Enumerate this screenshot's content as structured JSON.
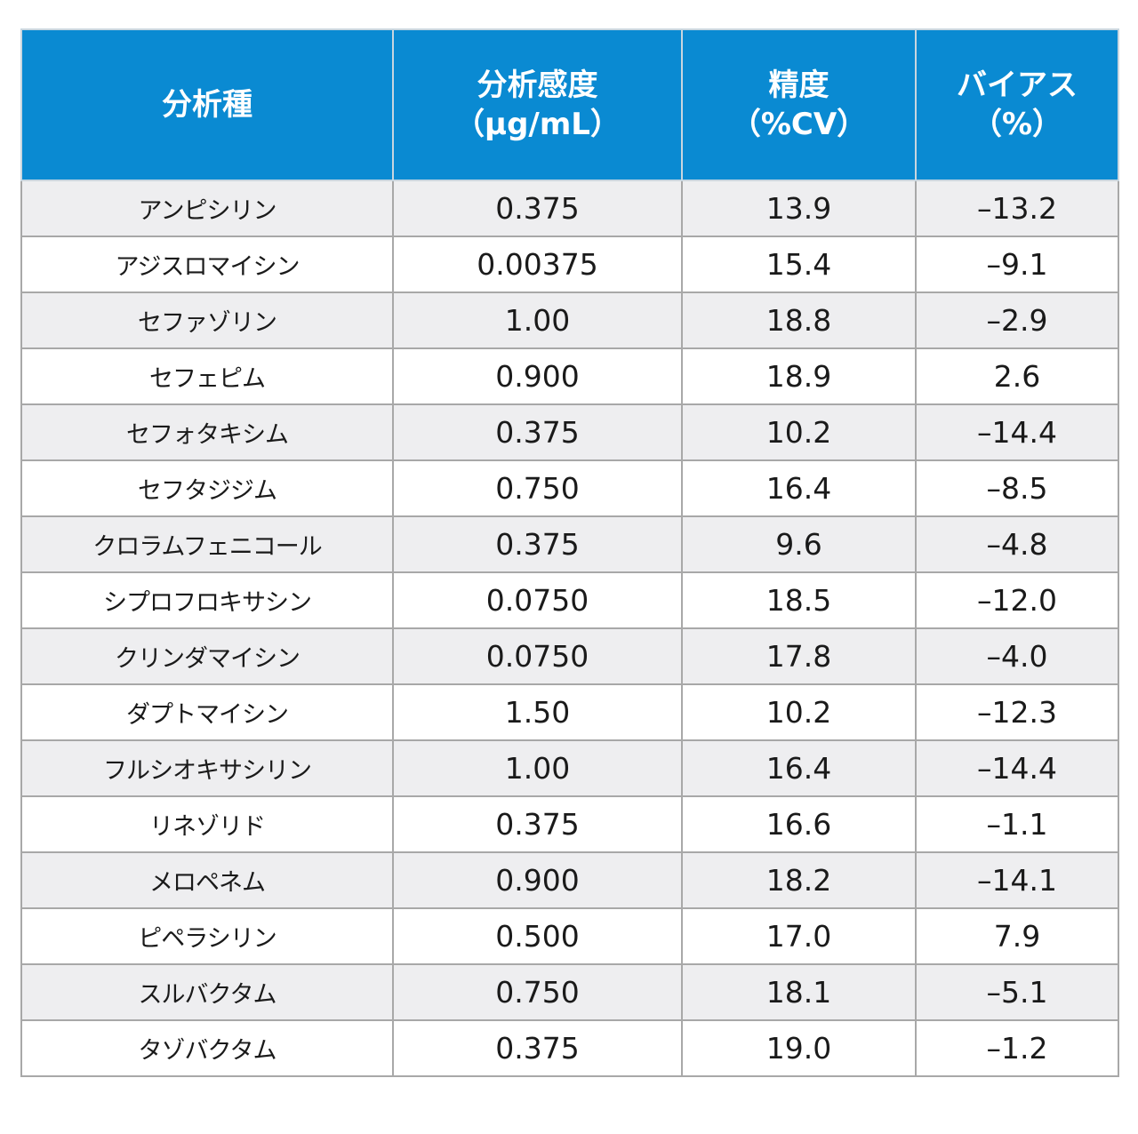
{
  "headers": [
    {
      "line1": "分析種",
      "line2": ""
    },
    {
      "line1": "分析感度",
      "line2": "（µg/mL）"
    },
    {
      "line1": "精度",
      "line2": "（%CV）"
    },
    {
      "line1": "バイアス",
      "line2": "（%）"
    }
  ],
  "rows": [
    {
      "name": "アンピシリン",
      "sensitivity": "0.375",
      "precision": "13.9",
      "bias": "–13.2"
    },
    {
      "name": "アジスロマイシン",
      "sensitivity": "0.00375",
      "precision": "15.4",
      "bias": "–9.1"
    },
    {
      "name": "セファゾリン",
      "sensitivity": "1.00",
      "precision": "18.8",
      "bias": "–2.9"
    },
    {
      "name": "セフェピム",
      "sensitivity": "0.900",
      "precision": "18.9",
      "bias": "2.6"
    },
    {
      "name": "セフォタキシム",
      "sensitivity": "0.375",
      "precision": "10.2",
      "bias": "–14.4"
    },
    {
      "name": "セフタジジム",
      "sensitivity": "0.750",
      "precision": "16.4",
      "bias": "–8.5"
    },
    {
      "name": "クロラムフェニコール",
      "sensitivity": "0.375",
      "precision": "9.6",
      "bias": "–4.8"
    },
    {
      "name": "シプロフロキサシン",
      "sensitivity": "0.0750",
      "precision": "18.5",
      "bias": "–12.0"
    },
    {
      "name": "クリンダマイシン",
      "sensitivity": "0.0750",
      "precision": "17.8",
      "bias": "–4.0"
    },
    {
      "name": "ダプトマイシン",
      "sensitivity": "1.50",
      "precision": "10.2",
      "bias": "–12.3"
    },
    {
      "name": "フルシオキサシリン",
      "sensitivity": "1.00",
      "precision": "16.4",
      "bias": "–14.4"
    },
    {
      "name": "リネゾリド",
      "sensitivity": "0.375",
      "precision": "16.6",
      "bias": "–1.1"
    },
    {
      "name": "メロペネム",
      "sensitivity": "0.900",
      "precision": "18.2",
      "bias": "–14.1"
    },
    {
      "name": "ピペラシリン",
      "sensitivity": "0.500",
      "precision": "17.0",
      "bias": "7.9"
    },
    {
      "name": "スルバクタム",
      "sensitivity": "0.750",
      "precision": "18.1",
      "bias": "–5.1"
    },
    {
      "name": "タゾバクタム",
      "sensitivity": "0.375",
      "precision": "19.0",
      "bias": "–1.2"
    }
  ]
}
